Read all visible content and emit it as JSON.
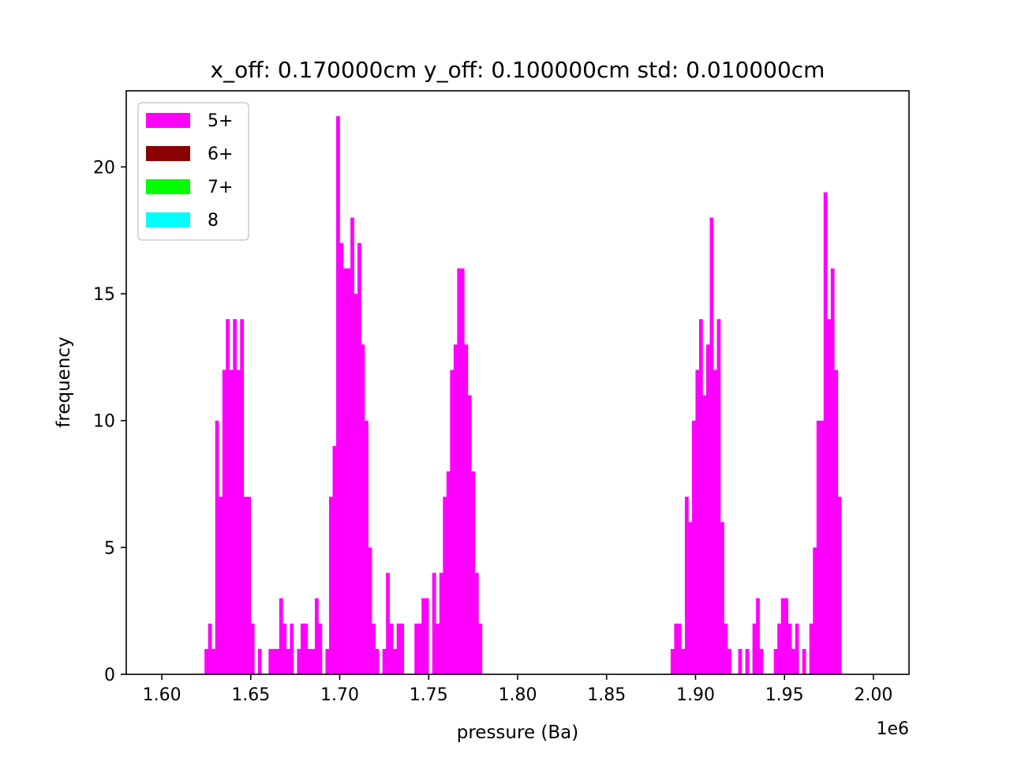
{
  "chart_data": {
    "type": "bar",
    "title": "x_off: 0.170000cm y_off: 0.100000cm std: 0.010000cm",
    "xlabel": "pressure (Ba)",
    "ylabel": "frequency",
    "x_offset_label": "1e6",
    "xlim": [
      1.58,
      2.02
    ],
    "ylim": [
      0,
      23
    ],
    "x_ticks": [
      1.6,
      1.65,
      1.7,
      1.75,
      1.8,
      1.85,
      1.9,
      1.95,
      2.0
    ],
    "x_tick_labels": [
      "1.60",
      "1.65",
      "1.70",
      "1.75",
      "1.80",
      "1.85",
      "1.90",
      "1.95",
      "2.00"
    ],
    "y_ticks": [
      0,
      5,
      10,
      15,
      20
    ],
    "y_tick_labels": [
      "0",
      "5",
      "10",
      "15",
      "20"
    ],
    "grid": false,
    "legend_position": "top-left",
    "legend": [
      {
        "label": "5+",
        "color": "#ff00ff"
      },
      {
        "label": "6+",
        "color": "#8b0000"
      },
      {
        "label": "7+",
        "color": "#00ff00"
      },
      {
        "label": "8",
        "color": "#00ffff"
      }
    ],
    "bin_width": 0.002,
    "series": [
      {
        "name": "5+",
        "color": "#ff00ff",
        "bins": [
          [
            1.624,
            1
          ],
          [
            1.626,
            2
          ],
          [
            1.628,
            1
          ],
          [
            1.63,
            10
          ],
          [
            1.632,
            7
          ],
          [
            1.634,
            12
          ],
          [
            1.636,
            14
          ],
          [
            1.638,
            12
          ],
          [
            1.64,
            14
          ],
          [
            1.642,
            12
          ],
          [
            1.644,
            14
          ],
          [
            1.646,
            7
          ],
          [
            1.648,
            7
          ],
          [
            1.65,
            2
          ],
          [
            1.654,
            1
          ],
          [
            1.66,
            1
          ],
          [
            1.662,
            1
          ],
          [
            1.664,
            1
          ],
          [
            1.666,
            3
          ],
          [
            1.668,
            2
          ],
          [
            1.67,
            1
          ],
          [
            1.672,
            2
          ],
          [
            1.676,
            1
          ],
          [
            1.678,
            2
          ],
          [
            1.68,
            2
          ],
          [
            1.682,
            1
          ],
          [
            1.684,
            1
          ],
          [
            1.686,
            3
          ],
          [
            1.688,
            2
          ],
          [
            1.692,
            1
          ],
          [
            1.694,
            7
          ],
          [
            1.696,
            9
          ],
          [
            1.698,
            22
          ],
          [
            1.7,
            17
          ],
          [
            1.702,
            16
          ],
          [
            1.704,
            16
          ],
          [
            1.706,
            18
          ],
          [
            1.708,
            15
          ],
          [
            1.71,
            17
          ],
          [
            1.712,
            13
          ],
          [
            1.714,
            10
          ],
          [
            1.716,
            5
          ],
          [
            1.718,
            2
          ],
          [
            1.72,
            1
          ],
          [
            1.724,
            1
          ],
          [
            1.726,
            4
          ],
          [
            1.728,
            2
          ],
          [
            1.73,
            1
          ],
          [
            1.732,
            2
          ],
          [
            1.734,
            2
          ],
          [
            1.742,
            2
          ],
          [
            1.744,
            2
          ],
          [
            1.746,
            3
          ],
          [
            1.748,
            3
          ],
          [
            1.752,
            4
          ],
          [
            1.754,
            2
          ],
          [
            1.756,
            4
          ],
          [
            1.758,
            7
          ],
          [
            1.76,
            8
          ],
          [
            1.762,
            12
          ],
          [
            1.764,
            13
          ],
          [
            1.766,
            16
          ],
          [
            1.768,
            16
          ],
          [
            1.77,
            13
          ],
          [
            1.772,
            11
          ],
          [
            1.774,
            8
          ],
          [
            1.776,
            4
          ],
          [
            1.778,
            2
          ],
          [
            1.886,
            1
          ],
          [
            1.888,
            2
          ],
          [
            1.89,
            2
          ],
          [
            1.892,
            1
          ],
          [
            1.894,
            7
          ],
          [
            1.896,
            6
          ],
          [
            1.898,
            10
          ],
          [
            1.9,
            12
          ],
          [
            1.902,
            14
          ],
          [
            1.904,
            11
          ],
          [
            1.906,
            13
          ],
          [
            1.908,
            18
          ],
          [
            1.91,
            12
          ],
          [
            1.912,
            14
          ],
          [
            1.914,
            6
          ],
          [
            1.916,
            2
          ],
          [
            1.918,
            1
          ],
          [
            1.924,
            1
          ],
          [
            1.928,
            1
          ],
          [
            1.932,
            2
          ],
          [
            1.934,
            3
          ],
          [
            1.936,
            1
          ],
          [
            1.944,
            1
          ],
          [
            1.946,
            2
          ],
          [
            1.948,
            3
          ],
          [
            1.95,
            3
          ],
          [
            1.952,
            2
          ],
          [
            1.954,
            1
          ],
          [
            1.956,
            2
          ],
          [
            1.96,
            1
          ],
          [
            1.964,
            2
          ],
          [
            1.966,
            5
          ],
          [
            1.968,
            10
          ],
          [
            1.97,
            10
          ],
          [
            1.972,
            19
          ],
          [
            1.974,
            14
          ],
          [
            1.976,
            16
          ],
          [
            1.978,
            12
          ],
          [
            1.98,
            7
          ]
        ]
      },
      {
        "name": "6+",
        "color": "#8b0000",
        "bins": []
      },
      {
        "name": "7+",
        "color": "#00ff00",
        "bins": []
      },
      {
        "name": "8",
        "color": "#00ffff",
        "bins": []
      }
    ]
  }
}
